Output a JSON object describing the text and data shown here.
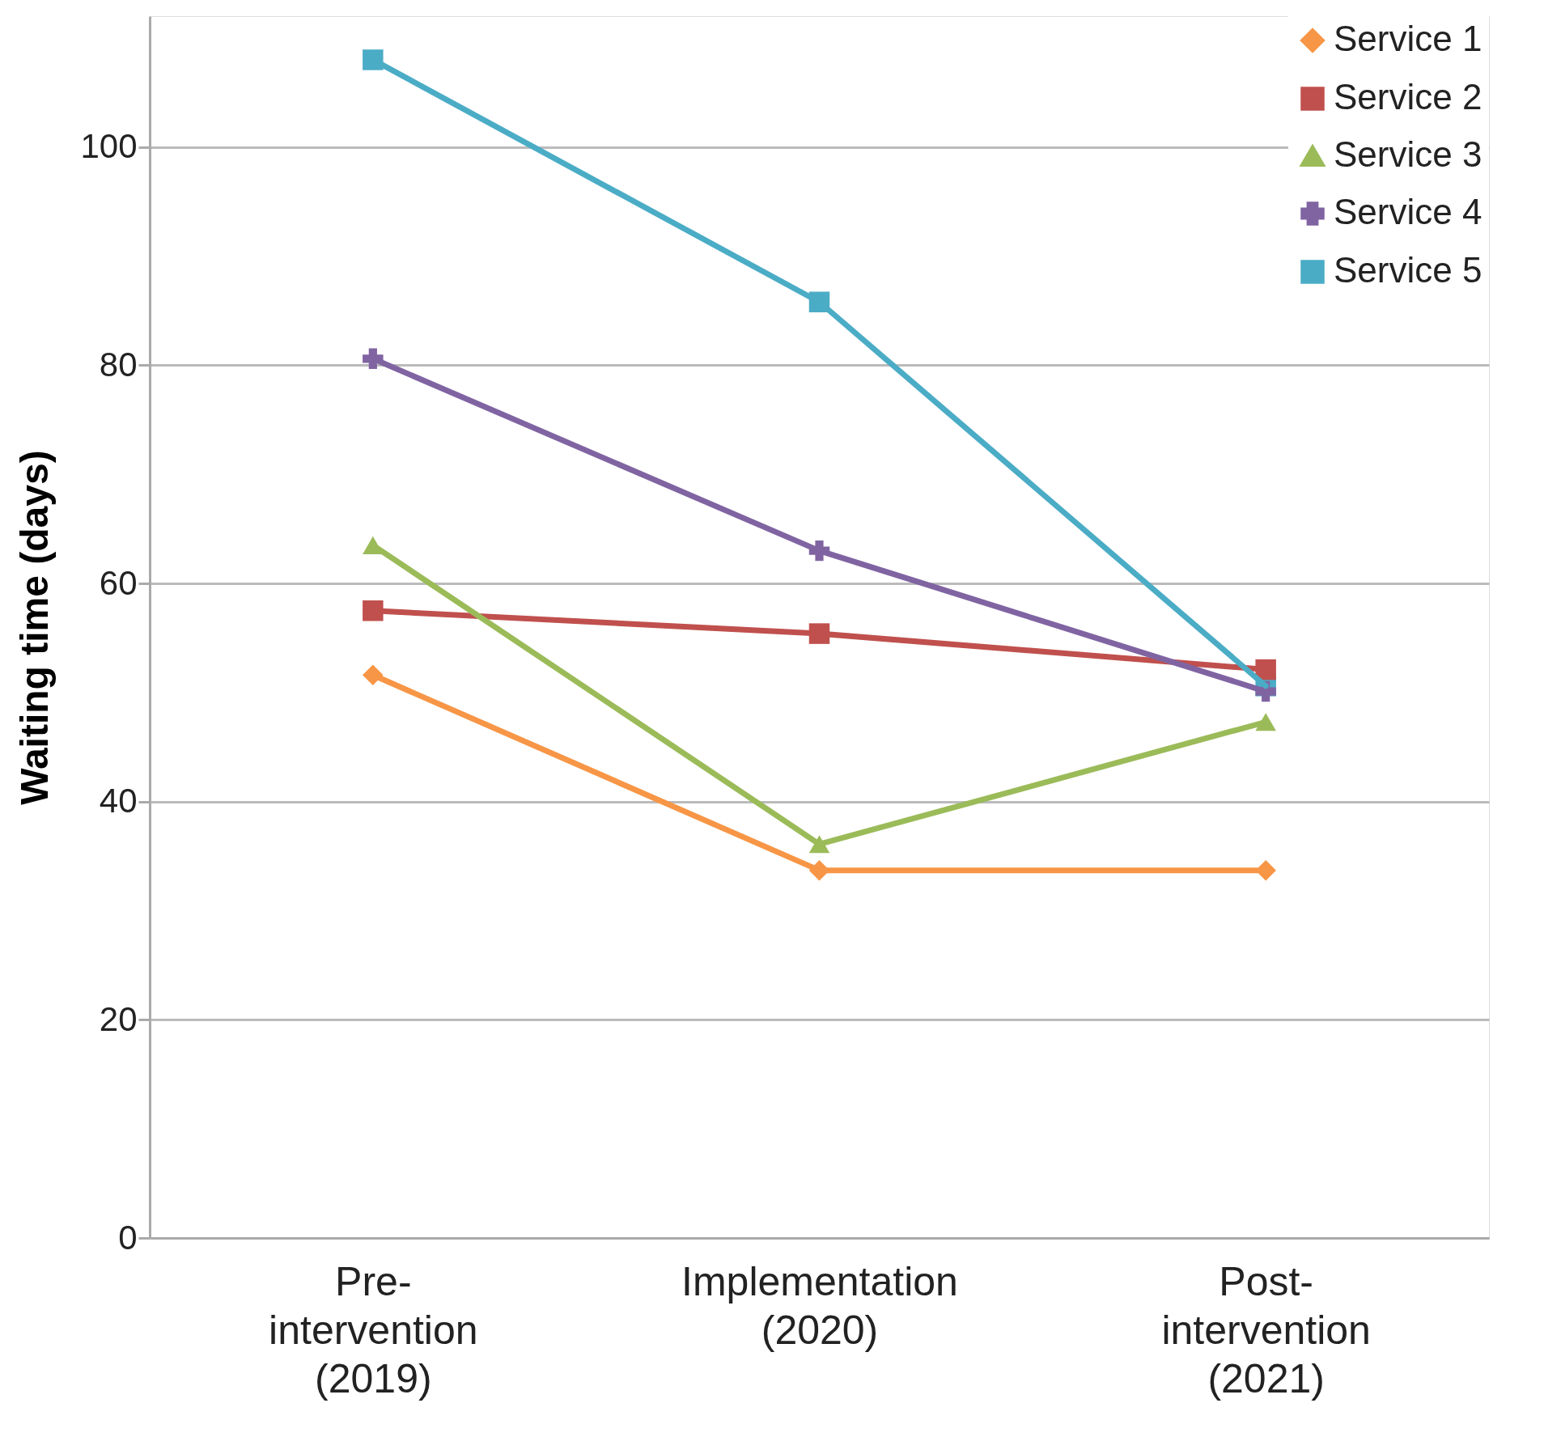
{
  "chart_data": {
    "type": "line",
    "ylabel": "Waiting time (days)",
    "categories": [
      "Pre-intervention (2019)",
      "Implementation (2020)",
      "Post-intervention (2021)"
    ],
    "series": [
      {
        "name": "Service 1",
        "color": "#f79646",
        "marker": "diamond",
        "values": [
          51.6,
          33.7,
          33.7
        ]
      },
      {
        "name": "Service 2",
        "color": "#c0504d",
        "marker": "square",
        "values": [
          57.5,
          55.4,
          52.1
        ]
      },
      {
        "name": "Service 3",
        "color": "#9bbb59",
        "marker": "triangle",
        "values": [
          63.5,
          36.1,
          47.3
        ]
      },
      {
        "name": "Service 4",
        "color": "#8064a2",
        "marker": "cross",
        "values": [
          80.6,
          63.0,
          50.1
        ]
      },
      {
        "name": "Service 5",
        "color": "#4bacc6",
        "marker": "square",
        "values": [
          108,
          85.8,
          50.6
        ]
      }
    ],
    "ylim": [
      0,
      112
    ],
    "yticks": [
      0,
      20,
      40,
      60,
      80,
      100
    ],
    "grid": "y",
    "legend": "top right",
    "line_style": "solid"
  }
}
